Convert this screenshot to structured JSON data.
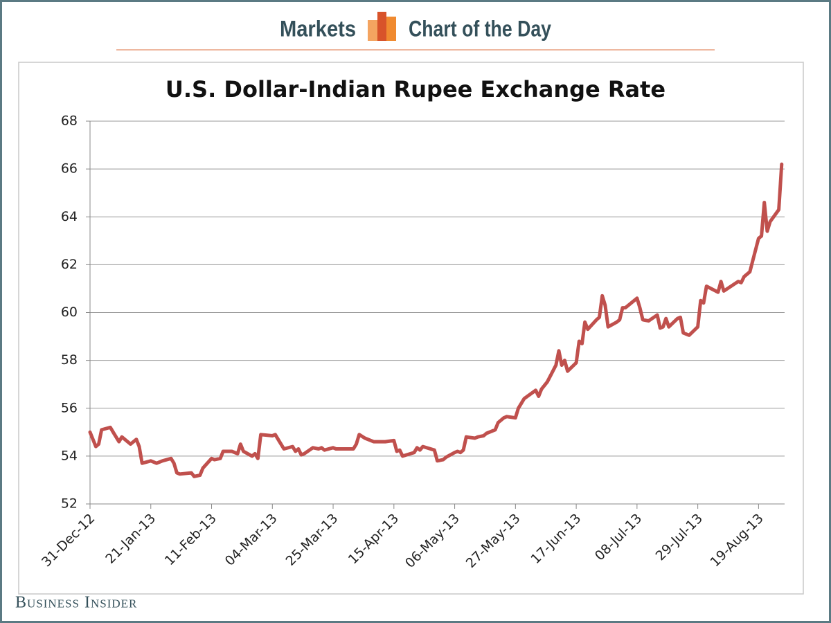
{
  "header": {
    "left": "Markets",
    "right": "Chart of the Day"
  },
  "brand": "Business Insider",
  "chart_data": {
    "type": "line",
    "title": "U.S. Dollar-Indian Rupee Exchange Rate",
    "color": "#c0504d",
    "grid": true,
    "x": [
      "2012-12-31",
      "2013-01-02",
      "2013-01-03",
      "2013-01-04",
      "2013-01-07",
      "2013-01-08",
      "2013-01-10",
      "2013-01-11",
      "2013-01-14",
      "2013-01-16",
      "2013-01-17",
      "2013-01-18",
      "2013-01-21",
      "2013-01-23",
      "2013-01-25",
      "2013-01-28",
      "2013-01-29",
      "2013-01-30",
      "2013-01-31",
      "2013-02-04",
      "2013-02-05",
      "2013-02-07",
      "2013-02-08",
      "2013-02-11",
      "2013-02-12",
      "2013-02-14",
      "2013-02-15",
      "2013-02-18",
      "2013-02-20",
      "2013-02-21",
      "2013-02-22",
      "2013-02-25",
      "2013-02-26",
      "2013-02-27",
      "2013-02-28",
      "2013-03-04",
      "2013-03-05",
      "2013-03-06",
      "2013-03-08",
      "2013-03-11",
      "2013-03-12",
      "2013-03-13",
      "2013-03-14",
      "2013-03-15",
      "2013-03-18",
      "2013-03-20",
      "2013-03-21",
      "2013-03-22",
      "2013-03-25",
      "2013-03-26",
      "2013-04-01",
      "2013-04-02",
      "2013-04-03",
      "2013-04-05",
      "2013-04-08",
      "2013-04-10",
      "2013-04-12",
      "2013-04-15",
      "2013-04-16",
      "2013-04-17",
      "2013-04-18",
      "2013-04-22",
      "2013-04-23",
      "2013-04-24",
      "2013-04-25",
      "2013-04-29",
      "2013-04-30",
      "2013-05-02",
      "2013-05-03",
      "2013-05-06",
      "2013-05-07",
      "2013-05-08",
      "2013-05-09",
      "2013-05-10",
      "2013-05-13",
      "2013-05-14",
      "2013-05-16",
      "2013-05-17",
      "2013-05-20",
      "2013-05-21",
      "2013-05-23",
      "2013-05-24",
      "2013-05-27",
      "2013-05-28",
      "2013-05-30",
      "2013-06-03",
      "2013-06-04",
      "2013-06-05",
      "2013-06-07",
      "2013-06-10",
      "2013-06-11",
      "2013-06-12",
      "2013-06-13",
      "2013-06-14",
      "2013-06-17",
      "2013-06-18",
      "2013-06-19",
      "2013-06-20",
      "2013-06-21",
      "2013-06-24",
      "2013-06-25",
      "2013-06-26",
      "2013-06-27",
      "2013-06-28",
      "2013-07-01",
      "2013-07-02",
      "2013-07-03",
      "2013-07-04",
      "2013-07-08",
      "2013-07-09",
      "2013-07-10",
      "2013-07-12",
      "2013-07-15",
      "2013-07-16",
      "2013-07-17",
      "2013-07-18",
      "2013-07-19",
      "2013-07-22",
      "2013-07-23",
      "2013-07-24",
      "2013-07-26",
      "2013-07-29",
      "2013-07-30",
      "2013-07-31",
      "2013-08-01",
      "2013-08-05",
      "2013-08-06",
      "2013-08-07",
      "2013-08-12",
      "2013-08-13",
      "2013-08-14",
      "2013-08-16",
      "2013-08-19",
      "2013-08-20",
      "2013-08-21",
      "2013-08-22",
      "2013-08-23",
      "2013-08-26",
      "2013-08-27"
    ],
    "values": [
      55.0,
      54.4,
      54.5,
      55.1,
      55.2,
      55.0,
      54.6,
      54.8,
      54.5,
      54.7,
      54.4,
      53.7,
      53.8,
      53.7,
      53.8,
      53.9,
      53.7,
      53.3,
      53.25,
      53.3,
      53.15,
      53.2,
      53.5,
      53.9,
      53.85,
      53.9,
      54.2,
      54.2,
      54.1,
      54.5,
      54.2,
      54.0,
      54.1,
      53.9,
      54.9,
      54.85,
      54.9,
      54.7,
      54.3,
      54.4,
      54.2,
      54.3,
      54.05,
      54.1,
      54.35,
      54.3,
      54.35,
      54.25,
      54.35,
      54.3,
      54.3,
      54.5,
      54.9,
      54.75,
      54.6,
      54.6,
      54.6,
      54.65,
      54.2,
      54.25,
      54.0,
      54.15,
      54.35,
      54.25,
      54.4,
      54.25,
      53.8,
      53.85,
      53.95,
      54.15,
      54.2,
      54.15,
      54.25,
      54.8,
      54.75,
      54.8,
      54.85,
      54.95,
      55.1,
      55.4,
      55.6,
      55.65,
      55.6,
      56.0,
      56.4,
      56.75,
      56.5,
      56.8,
      57.1,
      57.8,
      58.4,
      57.8,
      58.0,
      57.55,
      57.9,
      58.8,
      58.7,
      59.6,
      59.3,
      59.7,
      59.8,
      60.7,
      60.3,
      59.4,
      59.6,
      59.7,
      60.2,
      60.2,
      60.6,
      60.2,
      59.7,
      59.65,
      59.9,
      59.35,
      59.4,
      59.75,
      59.4,
      59.75,
      59.8,
      59.15,
      59.05,
      59.4,
      60.5,
      60.4,
      61.1,
      60.85,
      61.3,
      60.9,
      61.3,
      61.25,
      61.5,
      61.7,
      63.1,
      63.2,
      64.6,
      63.4,
      63.8,
      64.3,
      66.2
    ],
    "xlim": [
      "2012-12-31",
      "2013-08-28"
    ],
    "xticks": [
      {
        "value": "2012-12-31",
        "label": "31-Dec-12"
      },
      {
        "value": "2013-01-21",
        "label": "21-Jan-13"
      },
      {
        "value": "2013-02-11",
        "label": "11-Feb-13"
      },
      {
        "value": "2013-03-04",
        "label": "04-Mar-13"
      },
      {
        "value": "2013-03-25",
        "label": "25-Mar-13"
      },
      {
        "value": "2013-04-15",
        "label": "15-Apr-13"
      },
      {
        "value": "2013-05-06",
        "label": "06-May-13"
      },
      {
        "value": "2013-05-27",
        "label": "27-May-13"
      },
      {
        "value": "2013-06-17",
        "label": "17-Jun-13"
      },
      {
        "value": "2013-07-08",
        "label": "08-Jul-13"
      },
      {
        "value": "2013-07-29",
        "label": "29-Jul-13"
      },
      {
        "value": "2013-08-19",
        "label": "19-Aug-13"
      }
    ],
    "ylim": [
      52,
      68
    ],
    "yticks": [
      52,
      54,
      56,
      58,
      60,
      62,
      64,
      66,
      68
    ]
  }
}
